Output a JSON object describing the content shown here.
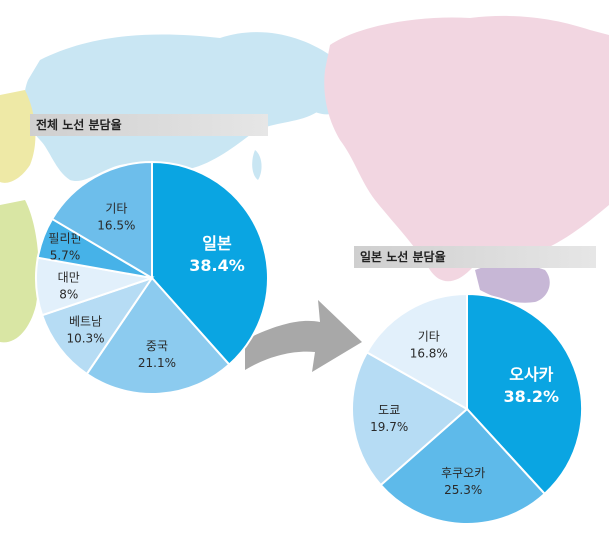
{
  "colors": {
    "ocean_bg": "#ffffff",
    "map_blue": "#c9e6f3",
    "map_pink": "#f2d6e1",
    "map_yellow": "#eee9a6",
    "map_green": "#d9e6a4",
    "map_purple": "#c7b7d6",
    "arrow_gray": "#a8a8a8"
  },
  "chart_data": [
    {
      "type": "pie",
      "title": "전체 노선 분담율",
      "slices": [
        {
          "label": "일본",
          "value": 38.4,
          "display": "38.4%",
          "color": "#0aa5e2",
          "text_color": "#ffffff"
        },
        {
          "label": "중국",
          "value": 21.1,
          "display": "21.1%",
          "color": "#8ccbef",
          "text_color": "#2a2a2a"
        },
        {
          "label": "베트남",
          "value": 10.3,
          "display": "10.3%",
          "color": "#b6dcf4",
          "text_color": "#2a2a2a"
        },
        {
          "label": "대만",
          "value": 8,
          "display": "8%",
          "color": "#e2f0fb",
          "text_color": "#2a2a2a"
        },
        {
          "label": "필리핀",
          "value": 5.7,
          "display": "5.7%",
          "color": "#46b2e8",
          "text_color": "#2a2a2a"
        },
        {
          "label": "기타",
          "value": 16.5,
          "display": "16.5%",
          "color": "#6dbeeb",
          "text_color": "#2a2a2a"
        }
      ]
    },
    {
      "type": "pie",
      "title": "일본 노선 분담율",
      "slices": [
        {
          "label": "오사카",
          "value": 38.2,
          "display": "38.2%",
          "color": "#0aa5e2",
          "text_color": "#ffffff"
        },
        {
          "label": "후쿠오카",
          "value": 25.3,
          "display": "25.3%",
          "color": "#5ebaea",
          "text_color": "#2a2a2a"
        },
        {
          "label": "도쿄",
          "value": 19.7,
          "display": "19.7%",
          "color": "#b6dcf4",
          "text_color": "#2a2a2a"
        },
        {
          "label": "기타",
          "value": 16.8,
          "display": "16.8%",
          "color": "#e2f0fb",
          "text_color": "#2a2a2a"
        }
      ]
    }
  ]
}
